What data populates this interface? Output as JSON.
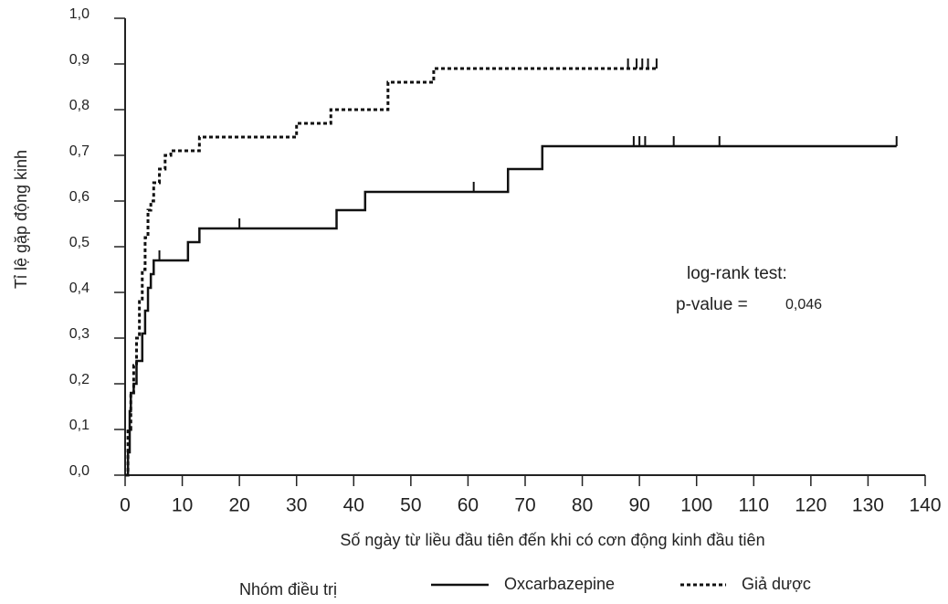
{
  "chart_data": {
    "type": "step",
    "y_label": "Tỉ lệ gặp động kinh",
    "x_label": "Số ngày từ liều đầu tiên đến khi có cơn động kinh đầu tiên",
    "legend_title": "Nhóm điều trị",
    "annotations": [
      "log-rank test:",
      "p-value =",
      "0,046"
    ],
    "xlim": [
      0,
      140
    ],
    "xticks": [
      0,
      10,
      20,
      30,
      40,
      50,
      60,
      70,
      80,
      90,
      100,
      110,
      120,
      130,
      140
    ],
    "ylim": [
      0,
      1
    ],
    "yticks": [
      {
        "value": 0,
        "label": "0,0"
      },
      {
        "value": 0.1,
        "label": "0,1"
      },
      {
        "value": 0.2,
        "label": "0,2"
      },
      {
        "value": 0.3,
        "label": "0,3"
      },
      {
        "value": 0.4,
        "label": "0,4"
      },
      {
        "value": 0.5,
        "label": "0,5"
      },
      {
        "value": 0.6,
        "label": "0,6"
      },
      {
        "value": 0.7,
        "label": "0,7"
      },
      {
        "value": 0.8,
        "label": "0,8"
      },
      {
        "value": 0.9,
        "label": "0,9"
      },
      {
        "value": 1,
        "label": "1,0"
      }
    ],
    "grid": false,
    "series": [
      {
        "name": "Oxcarbazepine",
        "color": "#111111",
        "dash": false,
        "x": [
          0,
          0.5,
          0.8,
          1,
          1.5,
          2,
          3,
          3.5,
          4,
          4.5,
          5,
          11,
          13,
          37,
          42,
          67,
          73,
          135
        ],
        "values": [
          0,
          0.05,
          0.14,
          0.18,
          0.2,
          0.25,
          0.31,
          0.36,
          0.41,
          0.44,
          0.47,
          0.51,
          0.54,
          0.58,
          0.62,
          0.67,
          0.72,
          0.72
        ],
        "censored": {
          "x": [
            6,
            20,
            61,
            89,
            90,
            91,
            96,
            104,
            135
          ],
          "values": [
            0.47,
            0.54,
            0.62,
            0.72,
            0.72,
            0.72,
            0.72,
            0.72,
            0.72
          ]
        }
      },
      {
        "name": "Giả dược",
        "color": "#111111",
        "dash": true,
        "x": [
          0,
          0.5,
          1,
          1.5,
          2,
          2.5,
          3,
          3.5,
          4,
          4.5,
          5,
          6,
          7,
          8,
          13,
          30,
          36,
          46,
          54,
          93
        ],
        "values": [
          0,
          0.1,
          0.18,
          0.24,
          0.3,
          0.38,
          0.45,
          0.52,
          0.58,
          0.6,
          0.64,
          0.67,
          0.7,
          0.71,
          0.74,
          0.77,
          0.8,
          0.86,
          0.89,
          0.89
        ],
        "censored": {
          "x": [
            88,
            89.5,
            90.5,
            91.5,
            93
          ],
          "values": [
            0.89,
            0.89,
            0.89,
            0.89,
            0.89
          ]
        }
      }
    ]
  }
}
